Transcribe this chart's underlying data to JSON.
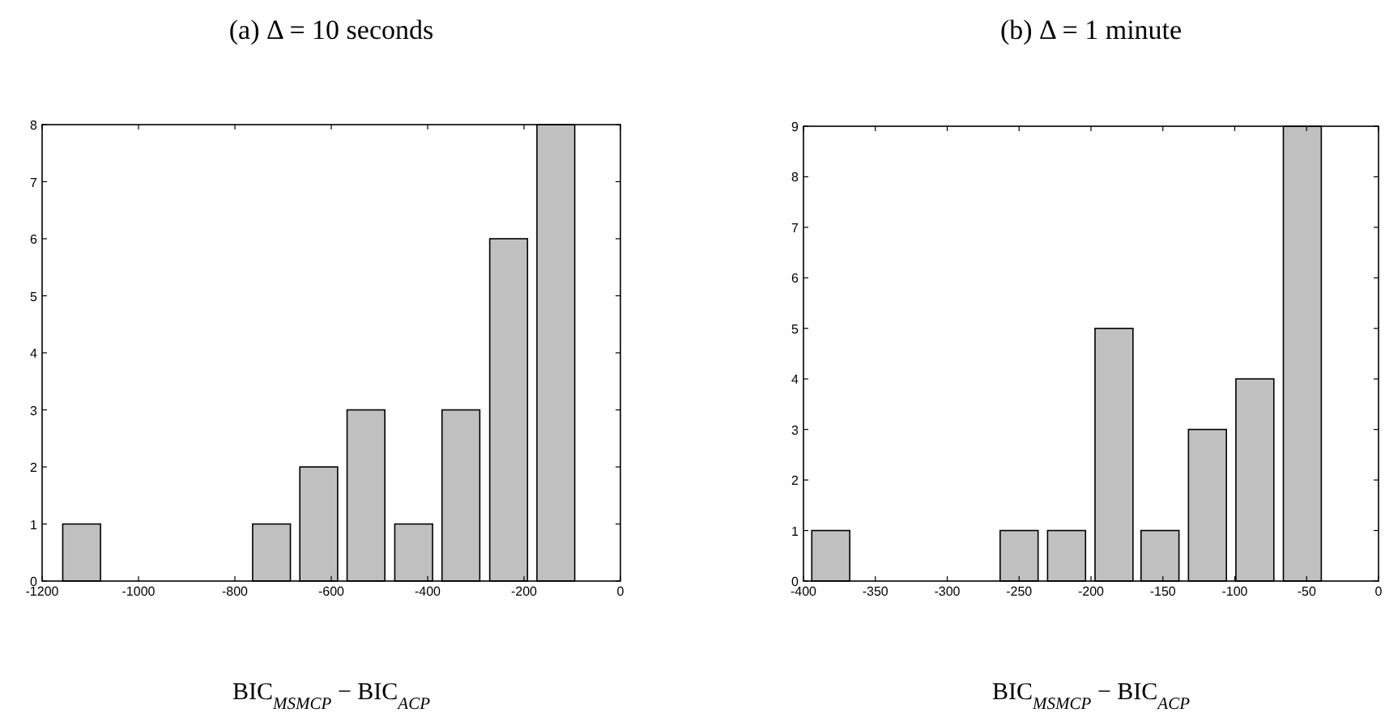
{
  "chart_data": [
    {
      "type": "bar",
      "title": "(a) Δ = 10 seconds",
      "xlabel": "BIC$_{MSMCP}$ − BIC$_{ACP}$",
      "x": [
        -1118,
        -1020,
        -921,
        -823,
        -724,
        -626,
        -528,
        -429,
        -331,
        -232,
        -134
      ],
      "values": [
        1,
        0,
        0,
        0,
        1,
        2,
        3,
        1,
        3,
        6,
        8
      ],
      "color": "#c0c0c0",
      "xlim": [
        -1200,
        0
      ],
      "xticks": [
        -1200,
        -1000,
        -800,
        -600,
        -400,
        -200,
        0
      ],
      "ylim": [
        0,
        8
      ],
      "yticks": [
        0,
        1,
        2,
        3,
        4,
        5,
        6,
        7,
        8
      ]
    },
    {
      "type": "bar",
      "title": "(b) Δ = 1 minute",
      "xlabel": "BIC$_{MSMCP}$ − BIC$_{ACP}$",
      "x": [
        -381,
        -348,
        -315,
        -283,
        -250,
        -217,
        -184,
        -152,
        -119,
        -86,
        -53
      ],
      "values": [
        1,
        0,
        0,
        0,
        1,
        1,
        5,
        1,
        3,
        4,
        9
      ],
      "color": "#c0c0c0",
      "xlim": [
        -400,
        0
      ],
      "xticks": [
        -400,
        -350,
        -300,
        -250,
        -200,
        -150,
        -100,
        -50,
        0
      ],
      "ylim": [
        0,
        9
      ],
      "yticks": [
        0,
        1,
        2,
        3,
        4,
        5,
        6,
        7,
        8,
        9
      ]
    }
  ]
}
